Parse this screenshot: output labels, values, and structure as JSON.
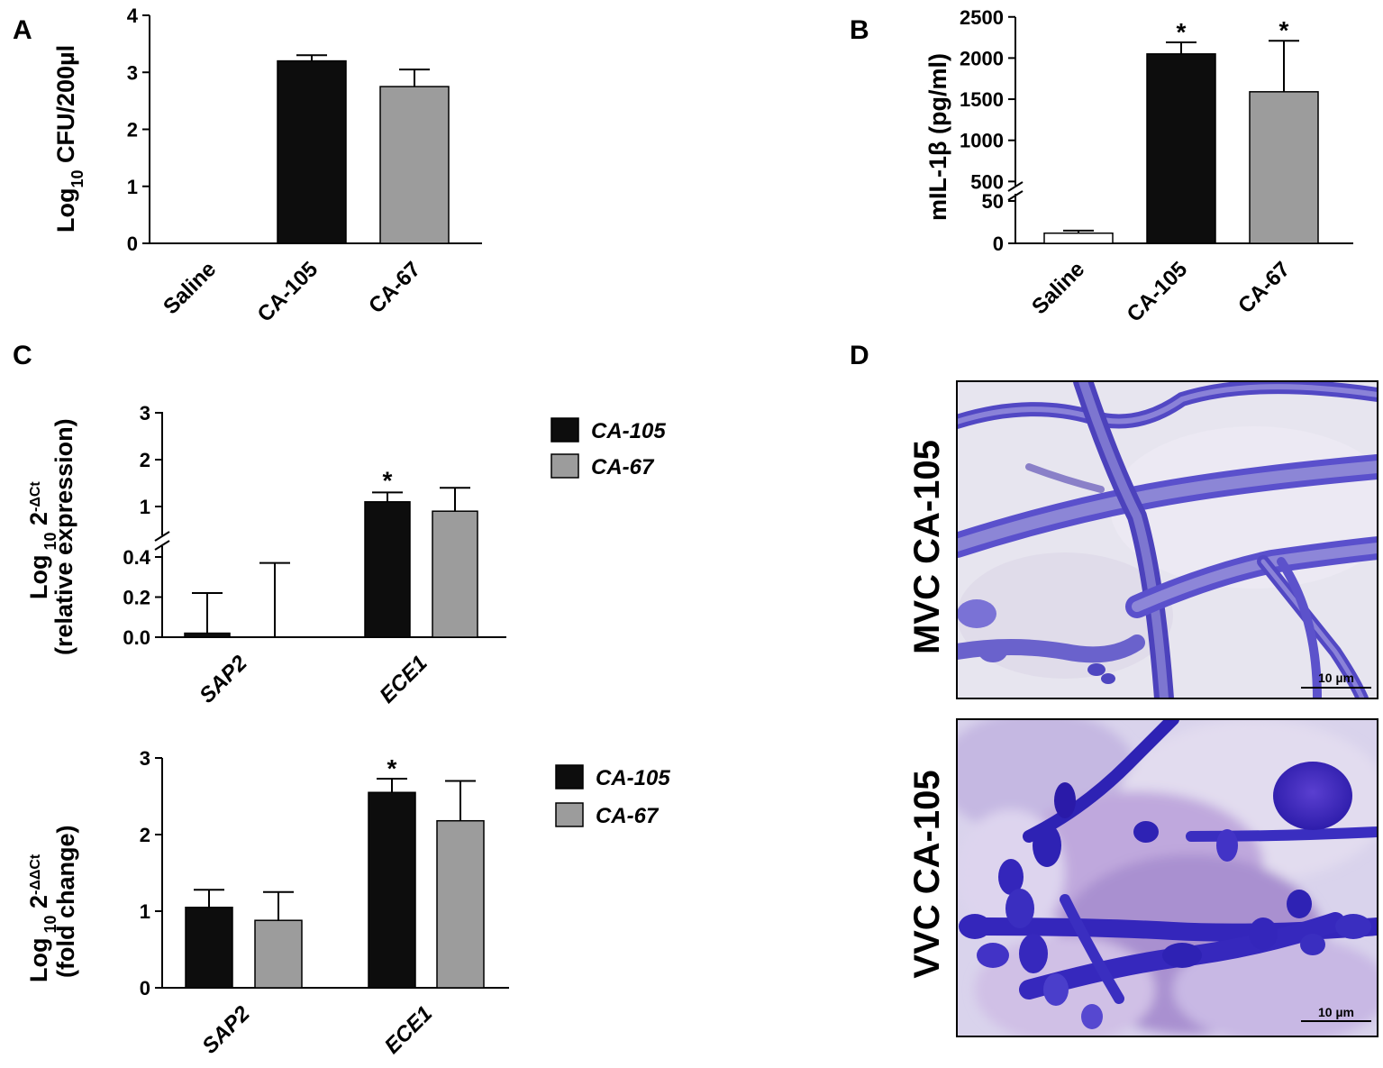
{
  "panels": {
    "a": {
      "letter": "A"
    },
    "b": {
      "letter": "B"
    },
    "c": {
      "letter": "C"
    },
    "d": {
      "letter": "D"
    }
  },
  "colors": {
    "ca105": "#0d0d0d",
    "ca67": "#9c9c9c",
    "saline": "#ffffff",
    "axis": "#000000"
  },
  "chart_data": [
    {
      "id": "A",
      "type": "bar",
      "ylabel_main": "Log",
      "ylabel_sub": "10",
      "ylabel_rest": " CFU/200µl",
      "categories": [
        "Saline",
        "CA-105",
        "CA-67"
      ],
      "values": [
        0,
        3.2,
        2.75
      ],
      "errors": [
        0,
        0.1,
        0.3
      ],
      "colors": [
        "#ffffff",
        "#0d0d0d",
        "#9c9c9c"
      ],
      "stars": [
        false,
        false,
        false
      ],
      "ylim": [
        0,
        4
      ],
      "yticks": [
        "0",
        "1",
        "2",
        "3",
        "4"
      ]
    },
    {
      "id": "B",
      "type": "bar",
      "ylabel": "mIL-1β (pg/ml)",
      "axis_break": true,
      "categories": [
        "Saline",
        "CA-105",
        "CA-67"
      ],
      "values": [
        12,
        2050,
        1590
      ],
      "errors": [
        3,
        140,
        620
      ],
      "colors": [
        "#ffffff",
        "#0d0d0d",
        "#9c9c9c"
      ],
      "stars": [
        false,
        true,
        true
      ],
      "star_label": "*",
      "yticks_low": [
        "0",
        "50"
      ],
      "yticks_high": [
        "500",
        "1000",
        "1500",
        "2000",
        "2500"
      ]
    },
    {
      "id": "C-top",
      "type": "bar",
      "ylabel_line1_main": "Log",
      "ylabel_line1_sub": " 10",
      "ylabel_line1_base": " 2",
      "ylabel_line1_sup": "-ΔCt",
      "ylabel_line2": "(relative expression)",
      "axis_break": true,
      "categories": [
        "SAP2",
        "ECE1"
      ],
      "series": [
        {
          "name": "CA-105",
          "values": [
            0.02,
            1.1
          ],
          "errors": [
            0.2,
            0.2
          ]
        },
        {
          "name": "CA-67",
          "values": [
            0.0,
            0.9
          ],
          "errors": [
            0.37,
            0.5
          ]
        }
      ],
      "stars": [
        [
          false,
          false
        ],
        [
          true,
          false
        ]
      ],
      "star_label": "*",
      "yticks_low": [
        "0.0",
        "0.2",
        "0.4"
      ],
      "yticks_high": [
        "1",
        "2",
        "3"
      ],
      "legend": [
        "CA-105",
        "CA-67"
      ]
    },
    {
      "id": "C-bottom",
      "type": "bar",
      "ylabel_line1_main": "Log",
      "ylabel_line1_sub": " 10",
      "ylabel_line1_base": " 2",
      "ylabel_line1_sup": "-ΔΔCt",
      "ylabel_line2": "(fold change)",
      "categories": [
        "SAP2",
        "ECE1"
      ],
      "series": [
        {
          "name": "CA-105",
          "values": [
            1.05,
            2.55
          ],
          "errors": [
            0.23,
            0.18
          ]
        },
        {
          "name": "CA-67",
          "values": [
            0.88,
            2.18
          ],
          "errors": [
            0.37,
            0.52
          ]
        }
      ],
      "stars": [
        [
          false,
          false
        ],
        [
          true,
          false
        ]
      ],
      "star_label": "*",
      "ylim": [
        0,
        3
      ],
      "yticks": [
        "0",
        "1",
        "2",
        "3"
      ],
      "legend": [
        "CA-105",
        "CA-67"
      ]
    }
  ],
  "micrographs": [
    {
      "label": "MVC CA-105",
      "scale_bar": "10 µm"
    },
    {
      "label": "VVC CA-105",
      "scale_bar": "10 µm"
    }
  ]
}
